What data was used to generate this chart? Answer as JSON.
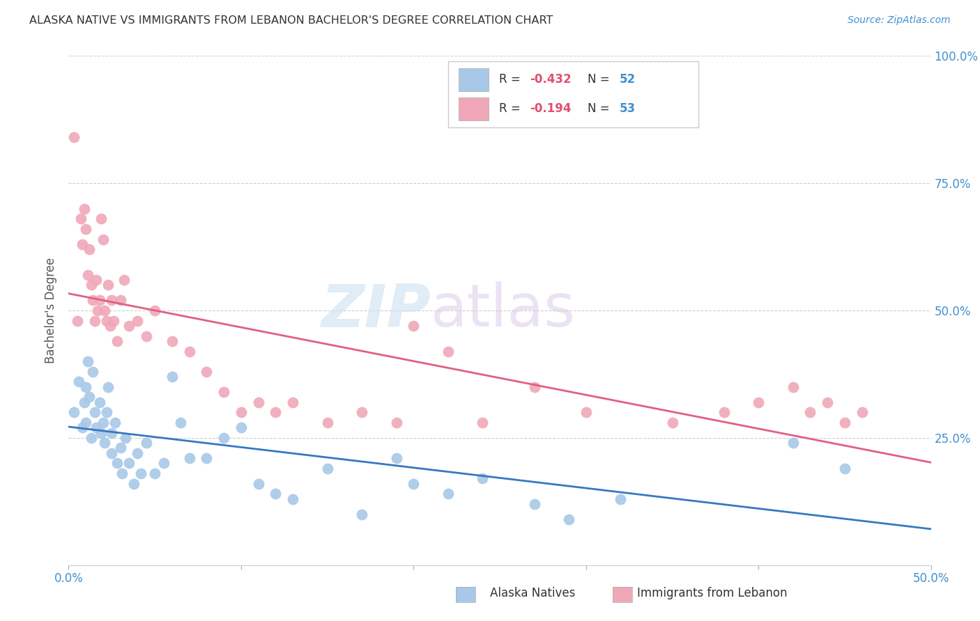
{
  "title": "ALASKA NATIVE VS IMMIGRANTS FROM LEBANON BACHELOR'S DEGREE CORRELATION CHART",
  "source": "Source: ZipAtlas.com",
  "ylabel": "Bachelor's Degree",
  "blue_R": "-0.432",
  "blue_N": "52",
  "pink_R": "-0.194",
  "pink_N": "53",
  "blue_color": "#a8c8e8",
  "pink_color": "#f0a8b8",
  "blue_line_color": "#3878c0",
  "pink_line_color": "#e06080",
  "grid_color": "#d0d0d0",
  "watermark_zip": "ZIP",
  "watermark_atlas": "atlas",
  "legend_label_blue": "Alaska Natives",
  "legend_label_pink": "Immigrants from Lebanon",
  "xlim": [
    0.0,
    0.5
  ],
  "ylim": [
    0.0,
    1.0
  ],
  "blue_scatter_x": [
    0.003,
    0.006,
    0.008,
    0.009,
    0.01,
    0.01,
    0.011,
    0.012,
    0.013,
    0.014,
    0.015,
    0.016,
    0.018,
    0.019,
    0.02,
    0.021,
    0.022,
    0.023,
    0.025,
    0.025,
    0.027,
    0.028,
    0.03,
    0.031,
    0.033,
    0.035,
    0.038,
    0.04,
    0.042,
    0.045,
    0.05,
    0.055,
    0.06,
    0.065,
    0.07,
    0.08,
    0.09,
    0.1,
    0.11,
    0.12,
    0.13,
    0.15,
    0.17,
    0.19,
    0.2,
    0.22,
    0.24,
    0.27,
    0.29,
    0.32,
    0.42,
    0.45
  ],
  "blue_scatter_y": [
    0.3,
    0.36,
    0.27,
    0.32,
    0.35,
    0.28,
    0.4,
    0.33,
    0.25,
    0.38,
    0.3,
    0.27,
    0.32,
    0.26,
    0.28,
    0.24,
    0.3,
    0.35,
    0.22,
    0.26,
    0.28,
    0.2,
    0.23,
    0.18,
    0.25,
    0.2,
    0.16,
    0.22,
    0.18,
    0.24,
    0.18,
    0.2,
    0.37,
    0.28,
    0.21,
    0.21,
    0.25,
    0.27,
    0.16,
    0.14,
    0.13,
    0.19,
    0.1,
    0.21,
    0.16,
    0.14,
    0.17,
    0.12,
    0.09,
    0.13,
    0.24,
    0.19
  ],
  "pink_scatter_x": [
    0.003,
    0.005,
    0.007,
    0.008,
    0.009,
    0.01,
    0.011,
    0.012,
    0.013,
    0.014,
    0.015,
    0.016,
    0.017,
    0.018,
    0.019,
    0.02,
    0.021,
    0.022,
    0.023,
    0.024,
    0.025,
    0.026,
    0.028,
    0.03,
    0.032,
    0.035,
    0.04,
    0.045,
    0.05,
    0.06,
    0.07,
    0.08,
    0.09,
    0.1,
    0.11,
    0.12,
    0.13,
    0.15,
    0.17,
    0.19,
    0.2,
    0.22,
    0.24,
    0.27,
    0.3,
    0.35,
    0.38,
    0.4,
    0.42,
    0.43,
    0.44,
    0.45,
    0.46
  ],
  "pink_scatter_y": [
    0.84,
    0.48,
    0.68,
    0.63,
    0.7,
    0.66,
    0.57,
    0.62,
    0.55,
    0.52,
    0.48,
    0.56,
    0.5,
    0.52,
    0.68,
    0.64,
    0.5,
    0.48,
    0.55,
    0.47,
    0.52,
    0.48,
    0.44,
    0.52,
    0.56,
    0.47,
    0.48,
    0.45,
    0.5,
    0.44,
    0.42,
    0.38,
    0.34,
    0.3,
    0.32,
    0.3,
    0.32,
    0.28,
    0.3,
    0.28,
    0.47,
    0.42,
    0.28,
    0.35,
    0.3,
    0.28,
    0.3,
    0.32,
    0.35,
    0.3,
    0.32,
    0.28,
    0.3
  ]
}
